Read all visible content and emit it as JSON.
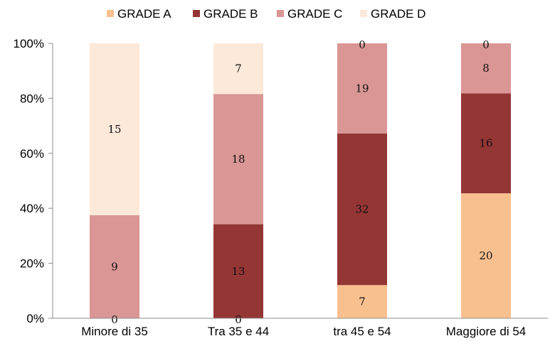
{
  "chart_data": {
    "type": "bar",
    "stacked": true,
    "percent_stacked": true,
    "title": "",
    "xlabel": "",
    "ylabel": "",
    "ylim": [
      0,
      100
    ],
    "yticks": [
      "0%",
      "20%",
      "40%",
      "60%",
      "80%",
      "100%"
    ],
    "legend_position": "top",
    "grid": false,
    "categories": [
      "Minore di 35",
      "Tra 35 e 44",
      "tra 45 e 54",
      "Maggiore di 54"
    ],
    "series": [
      {
        "name": "GRADE A",
        "color": "#f9c08f",
        "values": [
          0,
          0,
          7,
          20
        ]
      },
      {
        "name": "GRADE B",
        "color": "#943634",
        "values": [
          0,
          13,
          32,
          16
        ]
      },
      {
        "name": "GRADE C",
        "color": "#d99694",
        "values": [
          9,
          18,
          19,
          8
        ]
      },
      {
        "name": "GRADE D",
        "color": "#fde9d9",
        "values": [
          15,
          7,
          0,
          0
        ]
      }
    ]
  }
}
